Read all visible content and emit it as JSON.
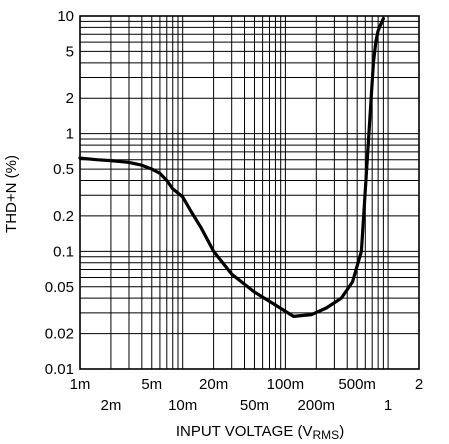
{
  "chart_data": {
    "type": "line",
    "xlabel": "INPUT VOLTAGE (V",
    "xlabel_sub": "RMS",
    "xlabel_close": ")",
    "ylabel": "THD+N (%)",
    "x_scale": "log",
    "y_scale": "log",
    "xlim": [
      0.001,
      2
    ],
    "ylim": [
      0.01,
      10
    ],
    "grid": true,
    "x_ticks_upper": [
      {
        "value": 0.001,
        "label": "1m"
      },
      {
        "value": 0.005,
        "label": "5m"
      },
      {
        "value": 0.02,
        "label": "20m"
      },
      {
        "value": 0.1,
        "label": "100m"
      },
      {
        "value": 0.5,
        "label": "500m"
      },
      {
        "value": 2,
        "label": "2"
      }
    ],
    "x_ticks_lower": [
      {
        "value": 0.002,
        "label": "2m"
      },
      {
        "value": 0.01,
        "label": "10m"
      },
      {
        "value": 0.05,
        "label": "50m"
      },
      {
        "value": 0.2,
        "label": "200m"
      },
      {
        "value": 1,
        "label": "1"
      }
    ],
    "y_ticks": [
      {
        "value": 10,
        "label": "10"
      },
      {
        "value": 5,
        "label": "5"
      },
      {
        "value": 2,
        "label": "2"
      },
      {
        "value": 1,
        "label": "1"
      },
      {
        "value": 0.5,
        "label": "0.5"
      },
      {
        "value": 0.2,
        "label": "0.2"
      },
      {
        "value": 0.1,
        "label": "0.1"
      },
      {
        "value": 0.05,
        "label": "0.05"
      },
      {
        "value": 0.02,
        "label": "0.02"
      },
      {
        "value": 0.01,
        "label": "0.01"
      }
    ],
    "series": [
      {
        "x": [
          0.001,
          0.0015,
          0.002,
          0.003,
          0.004,
          0.005,
          0.006,
          0.007,
          0.008,
          0.01,
          0.012,
          0.015,
          0.02,
          0.03,
          0.05,
          0.08,
          0.12,
          0.18,
          0.25,
          0.35,
          0.45,
          0.55,
          0.65,
          0.72,
          0.76,
          0.8,
          0.85,
          0.9
        ],
        "y": [
          0.62,
          0.6,
          0.59,
          0.57,
          0.54,
          0.5,
          0.46,
          0.4,
          0.34,
          0.29,
          0.22,
          0.16,
          0.1,
          0.064,
          0.045,
          0.035,
          0.028,
          0.029,
          0.033,
          0.04,
          0.055,
          0.1,
          1.0,
          4.0,
          6.0,
          7.5,
          8.5,
          9.5
        ]
      }
    ]
  }
}
